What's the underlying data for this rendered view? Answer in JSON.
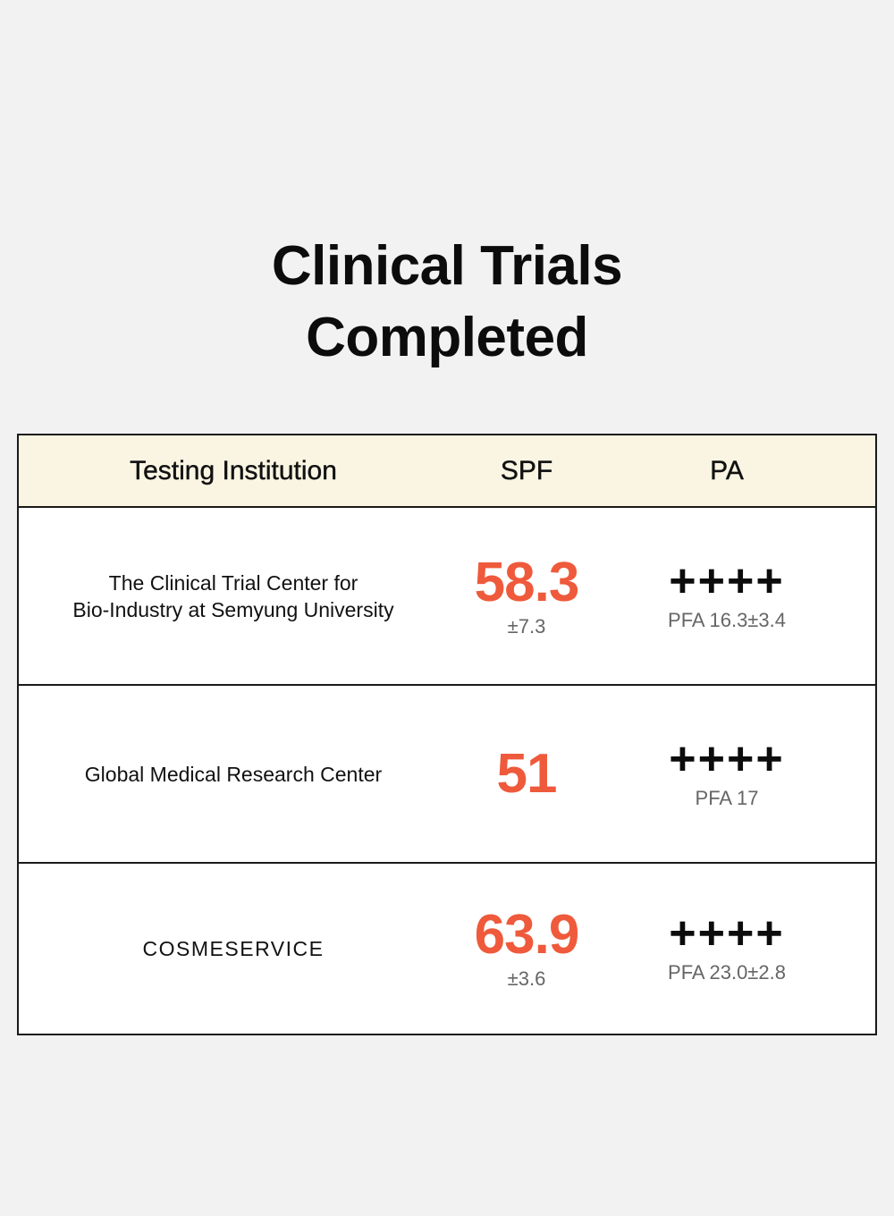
{
  "title": {
    "line1": "Clinical Trials",
    "line2": "Completed"
  },
  "table": {
    "headers": {
      "institution": "Testing Institution",
      "spf": "SPF",
      "pa": "PA"
    },
    "rows": [
      {
        "institution": "The Clinical Trial Center for\nBio-Industry at Semyung University",
        "spf": "58.3",
        "spf_deviation": "±7.3",
        "pa": "++++",
        "pfa": "PFA 16.3±3.4"
      },
      {
        "institution": "Global Medical Research Center",
        "spf": "51",
        "spf_deviation": "",
        "pa": "++++",
        "pfa": "PFA 17"
      },
      {
        "institution": "COSMESERVICE",
        "spf": "63.9",
        "spf_deviation": "±3.6",
        "pa": "++++",
        "pfa": "PFA 23.0±2.8"
      }
    ]
  },
  "colors": {
    "background": "#f2f2f2",
    "header_bg": "#faf5e3",
    "accent": "#ee5a3b",
    "text": "#111111",
    "muted": "#666666"
  }
}
